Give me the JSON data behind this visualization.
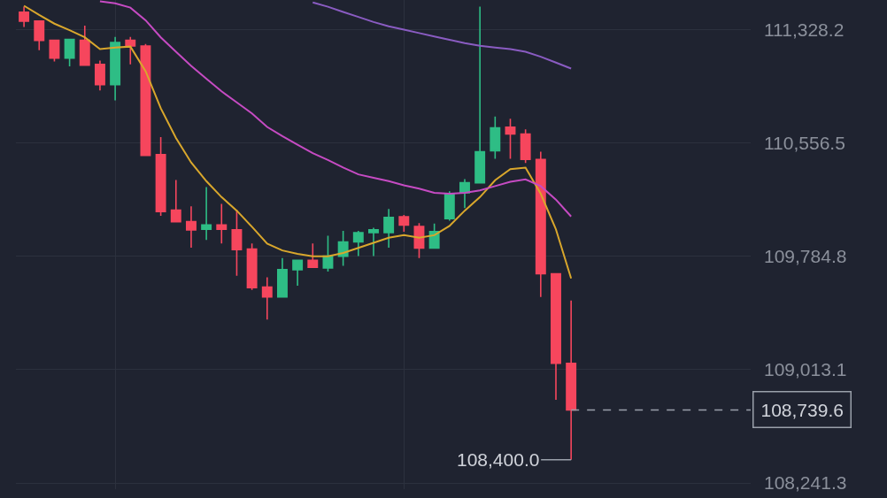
{
  "chart_data": {
    "type": "candlestick",
    "categories": [
      null,
      null,
      null,
      null,
      null,
      null,
      null,
      null,
      null,
      null,
      null,
      null,
      null,
      null,
      null,
      null,
      null,
      null,
      null,
      null,
      null,
      null,
      null,
      null,
      null,
      null,
      null,
      null,
      null,
      null,
      null,
      null,
      null,
      null,
      null,
      null,
      null
    ],
    "ohlc": [
      [
        111447,
        111485,
        111347,
        111386
      ],
      [
        111386,
        111390,
        111188,
        111255
      ],
      [
        111255,
        111255,
        111111,
        111134
      ],
      [
        111134,
        111261,
        111079,
        111261
      ],
      [
        111255,
        111355,
        111082,
        111086
      ],
      [
        111092,
        111117,
        110914,
        110954
      ],
      [
        110954,
        111278,
        110846,
        111240
      ],
      [
        111255,
        111278,
        111092,
        111217
      ],
      [
        111217,
        111230,
        110470,
        110472
      ],
      [
        110478,
        110597,
        110061,
        110090
      ],
      [
        110100,
        110305,
        110021,
        110021
      ],
      [
        110021,
        110126,
        109844,
        109965
      ],
      [
        109969,
        110257,
        109896,
        109998
      ],
      [
        109998,
        110142,
        109873,
        109969
      ],
      [
        109965,
        110103,
        109652,
        109831
      ],
      [
        109835,
        109873,
        109556,
        109572
      ],
      [
        109576,
        109642,
        109355,
        109508
      ],
      [
        109508,
        109773,
        109508,
        109694
      ],
      [
        109694,
        109758,
        109585,
        109758
      ],
      [
        109758,
        109873,
        109710,
        109710
      ],
      [
        109706,
        109925,
        109681,
        109786
      ],
      [
        109786,
        109959,
        109720,
        109883
      ],
      [
        109883,
        109959,
        109786,
        109946
      ],
      [
        109946,
        109979,
        109786,
        109965
      ],
      [
        109946,
        110107,
        109844,
        110050
      ],
      [
        110055,
        110067,
        109953,
        109998
      ],
      [
        109988,
        110011,
        109773,
        109841
      ],
      [
        109841,
        110008,
        109841,
        109953
      ],
      [
        110042,
        110228,
        110027,
        110213
      ],
      [
        110218,
        110311,
        110113,
        110286
      ],
      [
        110286,
        111485,
        110286,
        110497
      ],
      [
        110503,
        110737,
        110449,
        110660
      ],
      [
        110664,
        110722,
        110449,
        110618
      ],
      [
        110618,
        110650,
        110420,
        110445
      ],
      [
        110445,
        110497,
        109508,
        109666
      ],
      [
        109666,
        109666,
        108808,
        109057
      ],
      [
        109057,
        109484,
        108400,
        108739.6
      ]
    ],
    "colors": [
      "#f6465d",
      "#f6465d",
      "#f6465d",
      "#2ebd85",
      "#f6465d",
      "#f6465d",
      "#2ebd85",
      "#f6465d",
      "#f6465d",
      "#f6465d",
      "#f6465d",
      "#f6465d",
      "#2ebd85",
      "#f6465d",
      "#f6465d",
      "#f6465d",
      "#f6465d",
      "#2ebd85",
      "#2ebd85",
      "#f6465d",
      "#2ebd85",
      "#2ebd85",
      "#2ebd85",
      "#2ebd85",
      "#2ebd85",
      "#f6465d",
      "#f6465d",
      "#2ebd85",
      "#2ebd85",
      "#2ebd85",
      "#2ebd85",
      "#2ebd85",
      "#f6465d",
      "#f6465d",
      "#f6465d",
      "#f6465d",
      "#f6465d"
    ],
    "series": [
      {
        "type": "line",
        "color": "#d9a72c",
        "values": [
          111491,
          111428,
          111369,
          111325,
          111276,
          111196,
          111207,
          111213,
          111046,
          110793,
          110591,
          110424,
          110297,
          110188,
          110096,
          109986,
          109871,
          109825,
          109802,
          109785,
          109785,
          109808,
          109842,
          109877,
          109912,
          109929,
          109912,
          109929,
          109992,
          110096,
          110188,
          110303,
          110378,
          110389,
          110211,
          109969,
          109635
        ]
      },
      {
        "type": "line",
        "color": "#c64bc3",
        "values": [
          null,
          null,
          null,
          null,
          null,
          111521,
          111507,
          111478,
          111392,
          111276,
          111178,
          111081,
          110994,
          110908,
          110833,
          110758,
          110666,
          110603,
          110545,
          110487,
          110441,
          110390,
          110343,
          110320,
          110297,
          110269,
          110246,
          110217,
          110211,
          110217,
          110234,
          110263,
          110292,
          110309,
          110263,
          110171,
          110056
        ]
      },
      {
        "type": "line",
        "color": "#8a5cc2",
        "values": [
          null,
          null,
          null,
          null,
          null,
          null,
          null,
          null,
          null,
          null,
          null,
          null,
          null,
          null,
          null,
          null,
          null,
          null,
          null,
          111513,
          111484,
          111449,
          111415,
          111380,
          111351,
          111328,
          111305,
          111282,
          111259,
          111236,
          111219,
          111207,
          111196,
          111178,
          111144,
          111104,
          111063
        ]
      }
    ],
    "ylim": [
      108200,
      111530
    ],
    "yticks": [
      {
        "value": 108241.3,
        "label": "108,241.3"
      },
      {
        "value": 109013.1,
        "label": "109,013.1"
      },
      {
        "value": 109784.8,
        "label": "109,784.8"
      },
      {
        "value": 110556.5,
        "label": "110,556.5"
      },
      {
        "value": 111328.2,
        "label": "111,328.2"
      }
    ],
    "tick_labels": "y",
    "grid": true,
    "ref_lines": [
      {
        "axis": "y",
        "value": 108739.6,
        "label": "108,739.6",
        "line_style": "dashed",
        "color": "#9aa0aa"
      }
    ],
    "annotations": [
      "108,400.0"
    ]
  }
}
